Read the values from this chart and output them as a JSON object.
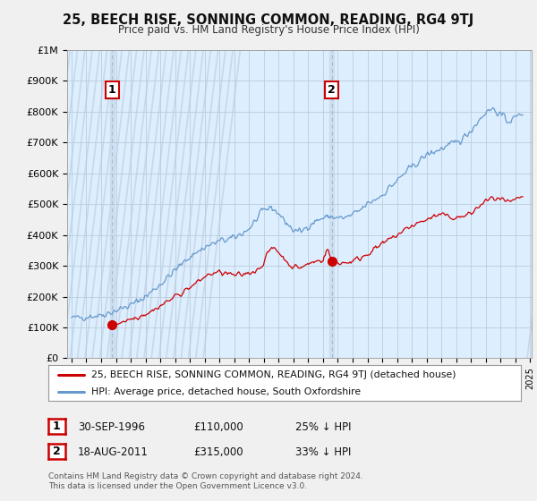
{
  "title": "25, BEECH RISE, SONNING COMMON, READING, RG4 9TJ",
  "subtitle": "Price paid vs. HM Land Registry's House Price Index (HPI)",
  "sale1_label": "30-SEP-1996",
  "sale1_price": 110000,
  "sale1_pct": "25% ↓ HPI",
  "sale2_label": "18-AUG-2011",
  "sale2_price": 315000,
  "sale2_pct": "33% ↓ HPI",
  "legend_line1": "25, BEECH RISE, SONNING COMMON, READING, RG4 9TJ (detached house)",
  "legend_line2": "HPI: Average price, detached house, South Oxfordshire",
  "footer": "Contains HM Land Registry data © Crown copyright and database right 2024.\nThis data is licensed under the Open Government Licence v3.0.",
  "sale_color": "#cc0000",
  "hpi_color": "#6699cc",
  "vline_color": "#aabbcc",
  "vband_color": "#ddeeff",
  "ylim": [
    0,
    1000000
  ],
  "yticks": [
    0,
    100000,
    200000,
    300000,
    400000,
    500000,
    600000,
    700000,
    800000,
    900000,
    1000000
  ],
  "ytick_labels": [
    "£0",
    "£100K",
    "£200K",
    "£300K",
    "£400K",
    "£500K",
    "£600K",
    "£700K",
    "£800K",
    "£900K",
    "£1M"
  ],
  "x_start_year": 1994,
  "x_end_year": 2025,
  "sale1_year": 1996.75,
  "sale2_year": 2011.6,
  "bg_color": "#f0f0f0",
  "plot_bg": "#ddeeff",
  "grid_color": "#bbccdd",
  "hatch_color": "#c8d8e8",
  "annotation1_num": "1",
  "annotation2_num": "2"
}
